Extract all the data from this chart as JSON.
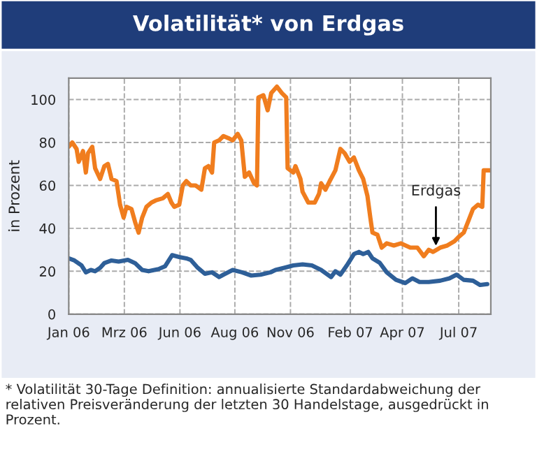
{
  "chart_data": {
    "type": "line",
    "title": "Volatilität* von Erdgas",
    "ylabel": "in Prozent",
    "xlim": [
      "2006-01-02",
      "2007-08-17"
    ],
    "ylim": [
      0,
      110
    ],
    "yticks": [
      0,
      20,
      40,
      60,
      80,
      100
    ],
    "xticks": [
      {
        "value": "2006-01-02",
        "label": "Jan 06"
      },
      {
        "value": "2006-03-21",
        "label": "Mrz 06"
      },
      {
        "value": "2006-06-07",
        "label": "Jun 06"
      },
      {
        "value": "2006-08-23",
        "label": "Aug 06"
      },
      {
        "value": "2006-11-09",
        "label": "Nov 06"
      },
      {
        "value": "2007-02-01",
        "label": "Feb 07"
      },
      {
        "value": "2007-04-15",
        "label": "Apr 07"
      },
      {
        "value": "2007-07-03",
        "label": "Jul 07"
      }
    ],
    "grid": true,
    "series": [
      {
        "color": "#f07d1e",
        "x": [
          "2006-01-02",
          "2006-01-07",
          "2006-01-13",
          "2006-01-16",
          "2006-01-22",
          "2006-01-26",
          "2006-01-29",
          "2006-02-04",
          "2006-02-08",
          "2006-02-15",
          "2006-02-21",
          "2006-02-26",
          "2006-03-03",
          "2006-03-10",
          "2006-03-15",
          "2006-03-20",
          "2006-03-24",
          "2006-03-31",
          "2006-04-05",
          "2006-04-10",
          "2006-04-15",
          "2006-04-21",
          "2006-04-28",
          "2006-05-04",
          "2006-05-14",
          "2006-05-21",
          "2006-05-26",
          "2006-05-30",
          "2006-06-06",
          "2006-06-11",
          "2006-06-16",
          "2006-06-22",
          "2006-06-29",
          "2006-07-07",
          "2006-07-12",
          "2006-07-17",
          "2006-07-22",
          "2006-07-25",
          "2006-08-01",
          "2006-08-07",
          "2006-08-14",
          "2006-08-20",
          "2006-08-27",
          "2006-09-01",
          "2006-09-06",
          "2006-09-12",
          "2006-09-19",
          "2006-09-23",
          "2006-09-25",
          "2006-10-02",
          "2006-10-08",
          "2006-10-13",
          "2006-10-21",
          "2006-10-28",
          "2006-11-03",
          "2006-11-05",
          "2006-11-13",
          "2006-11-16",
          "2006-11-23",
          "2006-11-26",
          "2006-12-04",
          "2006-12-13",
          "2006-12-19",
          "2006-12-22",
          "2006-12-28",
          "2007-01-03",
          "2007-01-11",
          "2007-01-18",
          "2007-01-24",
          "2007-01-31",
          "2007-02-06",
          "2007-02-13",
          "2007-02-19",
          "2007-02-25",
          "2007-03-01",
          "2007-03-04",
          "2007-03-11",
          "2007-03-17",
          "2007-03-24",
          "2007-04-03",
          "2007-04-13",
          "2007-04-26",
          "2007-05-06",
          "2007-05-15",
          "2007-05-22",
          "2007-05-28",
          "2007-06-07",
          "2007-06-17",
          "2007-06-27",
          "2007-07-03",
          "2007-07-10",
          "2007-07-16",
          "2007-07-23",
          "2007-07-30",
          "2007-08-05",
          "2007-08-07",
          "2007-08-15"
        ],
        "values": [
          78,
          80,
          77,
          71,
          76,
          66,
          75,
          78,
          68,
          63,
          69,
          70,
          63,
          62,
          51,
          45,
          50,
          49,
          43,
          38,
          45,
          50,
          52,
          53,
          54,
          56,
          52,
          50,
          51,
          60,
          62,
          60,
          60,
          58,
          68,
          69,
          66,
          80,
          81,
          83,
          82,
          81,
          84,
          81,
          64,
          66,
          61,
          60,
          101,
          102,
          95,
          103,
          106,
          103,
          101,
          68,
          66,
          69,
          63,
          57,
          52,
          52,
          56,
          61,
          58,
          62,
          67,
          77,
          75,
          71,
          73,
          67,
          63,
          55,
          45,
          38,
          37,
          31,
          33,
          32,
          33,
          31,
          31,
          27,
          30,
          29,
          31,
          32,
          34,
          36,
          38,
          43,
          49,
          51,
          50,
          67,
          67
        ]
      },
      {
        "color": "#2e5f98",
        "x": [
          "2006-01-02",
          "2006-01-10",
          "2006-01-20",
          "2006-01-26",
          "2006-02-02",
          "2006-02-08",
          "2006-02-15",
          "2006-02-21",
          "2006-03-03",
          "2006-03-13",
          "2006-03-26",
          "2006-04-05",
          "2006-04-15",
          "2006-04-24",
          "2006-05-08",
          "2006-05-17",
          "2006-05-27",
          "2006-06-06",
          "2006-06-16",
          "2006-06-22",
          "2006-07-02",
          "2006-07-12",
          "2006-07-22",
          "2006-08-01",
          "2006-08-07",
          "2006-08-20",
          "2006-09-02",
          "2006-09-15",
          "2006-09-28",
          "2006-10-12",
          "2006-10-19",
          "2006-10-31",
          "2006-11-13",
          "2006-11-26",
          "2006-12-09",
          "2006-12-22",
          "2007-01-05",
          "2007-01-11",
          "2007-01-18",
          "2007-01-27",
          "2007-02-06",
          "2007-02-13",
          "2007-02-19",
          "2007-02-26",
          "2007-03-04",
          "2007-03-14",
          "2007-03-24",
          "2007-04-06",
          "2007-04-19",
          "2007-04-29",
          "2007-05-09",
          "2007-05-22",
          "2007-06-07",
          "2007-06-20",
          "2007-06-30",
          "2007-07-10",
          "2007-07-23",
          "2007-08-02",
          "2007-08-12"
        ],
        "values": [
          26,
          25,
          22.7,
          19.5,
          20.6,
          20,
          21.6,
          23.8,
          25,
          24.5,
          25.3,
          23.8,
          20.6,
          20,
          21,
          22.3,
          27.5,
          26.6,
          26,
          25.3,
          21.6,
          18.8,
          19.5,
          17.3,
          18.4,
          20.6,
          19.5,
          18,
          18.4,
          19.5,
          20.6,
          21.6,
          22.7,
          23.2,
          22.7,
          20.6,
          17.3,
          20,
          18.4,
          22.7,
          28,
          29,
          28,
          29,
          26,
          24,
          19.5,
          16,
          14.5,
          16.7,
          15,
          15,
          15.6,
          16.7,
          18.4,
          16,
          15.6,
          13.6,
          14
        ]
      }
    ],
    "annotations": [
      {
        "text": "Erdgas",
        "x": "2007-06-01",
        "y": 30
      },
      "* Volatilität 30-Tage Definition: annualisierte Standardabweichung der relativen Preisveränderung der letzten 30 Handelstage, ausgedrückt in Prozent."
    ]
  }
}
